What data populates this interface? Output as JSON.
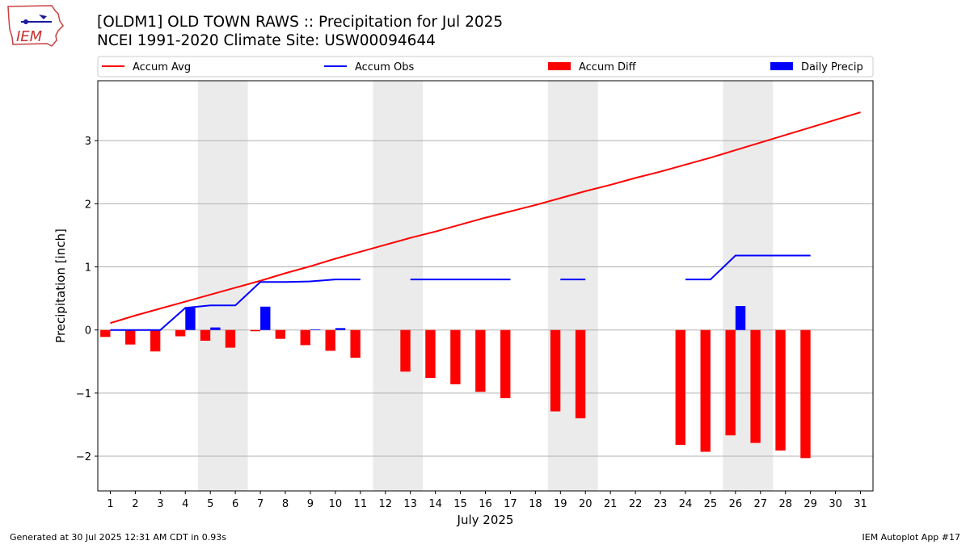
{
  "header": {
    "title_line1": "[OLDM1] OLD TOWN RAWS :: Precipitation for Jul 2025",
    "title_line2": "NCEI 1991-2020 Climate Site: USW00094644",
    "logo_text": "IEM"
  },
  "footer": {
    "left": "Generated at 30 Jul 2025 12:31 AM CDT in 0.93s",
    "right": "IEM Autoplot App #17"
  },
  "chart_data": {
    "type": "bar",
    "xlabel": "July 2025",
    "ylabel": "Precipitation [inch]",
    "xlim": [
      0.5,
      31.5
    ],
    "ylim": [
      -2.55,
      3.95
    ],
    "yticks": [
      -2,
      -1,
      0,
      1,
      2,
      3
    ],
    "ytick_labels": [
      "−2",
      "−1",
      "0",
      "1",
      "2",
      "3"
    ],
    "xticks": [
      1,
      2,
      3,
      4,
      5,
      6,
      7,
      8,
      9,
      10,
      11,
      12,
      13,
      14,
      15,
      16,
      17,
      18,
      19,
      20,
      21,
      22,
      23,
      24,
      25,
      26,
      27,
      28,
      29,
      30,
      31
    ],
    "grid": "horizontal",
    "legend_placement": "top",
    "weekend_shading": [
      [
        4.5,
        6.5
      ],
      [
        11.5,
        13.5
      ],
      [
        18.5,
        20.5
      ],
      [
        25.5,
        27.5
      ]
    ],
    "legend": [
      {
        "label": "Accum Avg",
        "kind": "line",
        "color": "#ff0000"
      },
      {
        "label": "Accum Obs",
        "kind": "line",
        "color": "#0000ff"
      },
      {
        "label": "Accum Diff",
        "kind": "bar",
        "color": "#ff0000"
      },
      {
        "label": "Daily Precip",
        "kind": "bar",
        "color": "#0000ff"
      }
    ],
    "series": [
      {
        "name": "Accum Avg",
        "color": "#ff0000",
        "x": [
          1,
          2,
          3,
          4,
          5,
          6,
          7,
          8,
          9,
          10,
          11,
          12,
          13,
          14,
          15,
          16,
          17,
          18,
          19,
          20,
          21,
          22,
          23,
          24,
          25,
          26,
          27,
          28,
          29,
          30,
          31
        ],
        "values": [
          0.11,
          0.23,
          0.34,
          0.45,
          0.56,
          0.67,
          0.78,
          0.9,
          1.01,
          1.13,
          1.24,
          1.35,
          1.46,
          1.56,
          1.67,
          1.78,
          1.88,
          1.98,
          2.09,
          2.2,
          2.3,
          2.41,
          2.51,
          2.62,
          2.73,
          2.85,
          2.97,
          3.09,
          3.21,
          3.33,
          3.45
        ]
      },
      {
        "name": "Accum Obs",
        "color": "#0000ff",
        "x": [
          1,
          2,
          3,
          4,
          5,
          6,
          7,
          8,
          9,
          10,
          11,
          12,
          13,
          14,
          15,
          16,
          17,
          18,
          19,
          20,
          21,
          22,
          23,
          24,
          25,
          26,
          27,
          28,
          29,
          30,
          31
        ],
        "values": [
          0.0,
          0.0,
          0.0,
          0.35,
          0.39,
          0.39,
          0.76,
          0.76,
          0.77,
          0.8,
          0.8,
          null,
          0.8,
          0.8,
          0.8,
          0.8,
          0.8,
          null,
          0.8,
          0.8,
          null,
          null,
          null,
          0.8,
          0.8,
          1.18,
          1.18,
          1.18,
          1.18,
          null,
          null
        ]
      },
      {
        "name": "Accum Diff",
        "color": "#ff0000",
        "x": [
          1,
          2,
          3,
          4,
          5,
          6,
          7,
          8,
          9,
          10,
          11,
          12,
          13,
          14,
          15,
          16,
          17,
          18,
          19,
          20,
          21,
          22,
          23,
          24,
          25,
          26,
          27,
          28,
          29,
          30,
          31
        ],
        "values": [
          -0.11,
          -0.23,
          -0.34,
          -0.1,
          -0.17,
          -0.28,
          -0.02,
          -0.14,
          -0.24,
          -0.33,
          -0.44,
          null,
          -0.66,
          -0.76,
          -0.86,
          -0.98,
          -1.08,
          null,
          -1.29,
          -1.4,
          null,
          null,
          null,
          -1.82,
          -1.93,
          -1.67,
          -1.79,
          -1.91,
          -2.03,
          null,
          null
        ]
      },
      {
        "name": "Daily Precip",
        "color": "#0000ff",
        "x": [
          1,
          2,
          3,
          4,
          5,
          6,
          7,
          8,
          9,
          10,
          11,
          12,
          13,
          14,
          15,
          16,
          17,
          18,
          19,
          20,
          21,
          22,
          23,
          24,
          25,
          26,
          27,
          28,
          29,
          30,
          31
        ],
        "values": [
          0,
          0,
          0,
          0.35,
          0.04,
          0,
          0.37,
          0,
          0.01,
          0.03,
          0,
          null,
          0,
          0,
          0,
          0,
          0,
          null,
          0,
          0,
          null,
          null,
          null,
          0,
          0,
          0.38,
          0,
          0,
          0,
          null,
          null
        ]
      }
    ]
  }
}
